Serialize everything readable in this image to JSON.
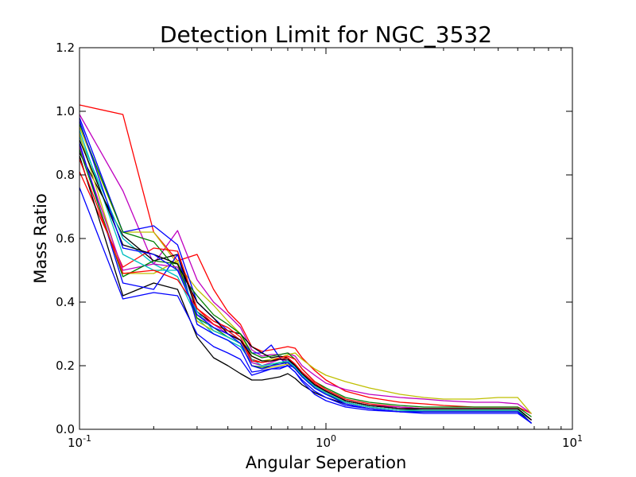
{
  "chart_data": {
    "type": "line",
    "title": "Detection Limit for NGC_3532",
    "xlabel": "Angular Seperation",
    "ylabel": "Mass Ratio",
    "x_scale": "log",
    "xlim": [
      0.1,
      10
    ],
    "ylim": [
      0.0,
      1.2
    ],
    "x_ticks": [
      0.1,
      1,
      10
    ],
    "x_tick_labels": [
      {
        "base": "10",
        "exp": "-1"
      },
      {
        "base": "10",
        "exp": "0"
      },
      {
        "base": "10",
        "exp": "1"
      }
    ],
    "y_ticks": [
      0.0,
      0.2,
      0.4,
      0.6,
      0.8,
      1.0,
      1.2
    ],
    "y_tick_labels": [
      "0.0",
      "0.2",
      "0.4",
      "0.6",
      "0.8",
      "1.0",
      "1.2"
    ],
    "grid": false,
    "legend": "none",
    "x": [
      0.1,
      0.15,
      0.2,
      0.25,
      0.3,
      0.35,
      0.4,
      0.45,
      0.5,
      0.55,
      0.6,
      0.65,
      0.7,
      0.75,
      0.8,
      0.9,
      1.0,
      1.2,
      1.5,
      2.0,
      2.5,
      3.0,
      4.0,
      5.0,
      6.0,
      6.8
    ],
    "series": [
      {
        "color": "#ff0000",
        "values": [
          1.02,
          0.99,
          0.62,
          0.53,
          0.55,
          0.44,
          0.37,
          0.33,
          0.26,
          0.245,
          0.25,
          0.255,
          0.26,
          0.255,
          0.225,
          0.185,
          0.155,
          0.12,
          0.1,
          0.085,
          0.08,
          0.075,
          0.07,
          0.07,
          0.07,
          0.05
        ]
      },
      {
        "color": "#bf00bf",
        "values": [
          0.99,
          0.75,
          0.52,
          0.625,
          0.47,
          0.4,
          0.36,
          0.32,
          0.25,
          0.23,
          0.235,
          0.235,
          0.24,
          0.23,
          0.2,
          0.17,
          0.145,
          0.125,
          0.11,
          0.1,
          0.095,
          0.09,
          0.085,
          0.085,
          0.08,
          0.05
        ]
      },
      {
        "color": "#bfbf00",
        "values": [
          0.95,
          0.62,
          0.62,
          0.52,
          0.44,
          0.39,
          0.34,
          0.3,
          0.23,
          0.215,
          0.22,
          0.225,
          0.235,
          0.24,
          0.22,
          0.19,
          0.17,
          0.15,
          0.13,
          0.11,
          0.1,
          0.095,
          0.095,
          0.1,
          0.1,
          0.05
        ]
      },
      {
        "color": "#0000ff",
        "values": [
          0.98,
          0.62,
          0.64,
          0.58,
          0.4,
          0.35,
          0.31,
          0.28,
          0.24,
          0.24,
          0.265,
          0.225,
          0.2,
          0.195,
          0.17,
          0.14,
          0.12,
          0.09,
          0.075,
          0.065,
          0.06,
          0.06,
          0.06,
          0.06,
          0.06,
          0.03
        ]
      },
      {
        "color": "#000000",
        "values": [
          0.87,
          0.61,
          0.53,
          0.55,
          0.37,
          0.33,
          0.31,
          0.3,
          0.26,
          0.24,
          0.225,
          0.23,
          0.225,
          0.2,
          0.175,
          0.14,
          0.12,
          0.09,
          0.075,
          0.065,
          0.06,
          0.06,
          0.06,
          0.06,
          0.06,
          0.02
        ]
      },
      {
        "color": "#00bfbf",
        "values": [
          0.92,
          0.6,
          0.52,
          0.48,
          0.35,
          0.3,
          0.28,
          0.26,
          0.21,
          0.2,
          0.205,
          0.21,
          0.21,
          0.19,
          0.165,
          0.13,
          0.11,
          0.085,
          0.07,
          0.06,
          0.055,
          0.055,
          0.055,
          0.055,
          0.055,
          0.02
        ]
      },
      {
        "color": "#008000",
        "values": [
          0.96,
          0.62,
          0.59,
          0.5,
          0.42,
          0.36,
          0.33,
          0.3,
          0.24,
          0.225,
          0.23,
          0.235,
          0.24,
          0.22,
          0.19,
          0.15,
          0.13,
          0.1,
          0.085,
          0.075,
          0.07,
          0.07,
          0.07,
          0.07,
          0.07,
          0.04
        ]
      },
      {
        "color": "#ff0000",
        "values": [
          0.81,
          0.51,
          0.57,
          0.56,
          0.38,
          0.34,
          0.32,
          0.29,
          0.22,
          0.21,
          0.215,
          0.225,
          0.23,
          0.22,
          0.19,
          0.15,
          0.125,
          0.095,
          0.08,
          0.07,
          0.065,
          0.065,
          0.065,
          0.065,
          0.065,
          0.03
        ]
      },
      {
        "color": "#000000",
        "values": [
          0.86,
          0.42,
          0.46,
          0.44,
          0.29,
          0.225,
          0.2,
          0.175,
          0.155,
          0.155,
          0.16,
          0.165,
          0.175,
          0.16,
          0.14,
          0.115,
          0.1,
          0.08,
          0.065,
          0.055,
          0.055,
          0.055,
          0.055,
          0.055,
          0.055,
          0.02
        ]
      },
      {
        "color": "#0000ff",
        "values": [
          0.76,
          0.41,
          0.43,
          0.42,
          0.3,
          0.26,
          0.24,
          0.22,
          0.17,
          0.18,
          0.19,
          0.19,
          0.2,
          0.18,
          0.15,
          0.11,
          0.09,
          0.07,
          0.06,
          0.055,
          0.05,
          0.05,
          0.05,
          0.05,
          0.05,
          0.02
        ]
      },
      {
        "color": "#bfbf00",
        "values": [
          0.93,
          0.49,
          0.49,
          0.53,
          0.34,
          0.31,
          0.29,
          0.27,
          0.2,
          0.19,
          0.195,
          0.2,
          0.205,
          0.195,
          0.17,
          0.135,
          0.115,
          0.085,
          0.07,
          0.06,
          0.06,
          0.06,
          0.06,
          0.06,
          0.06,
          0.03
        ]
      },
      {
        "color": "#bf00bf",
        "values": [
          0.89,
          0.5,
          0.52,
          0.51,
          0.36,
          0.33,
          0.3,
          0.28,
          0.21,
          0.2,
          0.21,
          0.22,
          0.215,
          0.2,
          0.175,
          0.14,
          0.12,
          0.09,
          0.075,
          0.07,
          0.065,
          0.065,
          0.065,
          0.065,
          0.065,
          0.03
        ]
      },
      {
        "color": "#0000ff",
        "values": [
          0.9,
          0.46,
          0.44,
          0.55,
          0.33,
          0.3,
          0.28,
          0.25,
          0.18,
          0.185,
          0.19,
          0.195,
          0.2,
          0.18,
          0.155,
          0.12,
          0.1,
          0.075,
          0.065,
          0.055,
          0.055,
          0.055,
          0.055,
          0.055,
          0.055,
          0.02
        ]
      },
      {
        "color": "#008000",
        "values": [
          0.88,
          0.48,
          0.53,
          0.52,
          0.35,
          0.32,
          0.29,
          0.27,
          0.2,
          0.195,
          0.2,
          0.21,
          0.21,
          0.19,
          0.165,
          0.13,
          0.11,
          0.085,
          0.07,
          0.06,
          0.06,
          0.06,
          0.06,
          0.06,
          0.06,
          0.03
        ]
      },
      {
        "color": "#00bfbf",
        "values": [
          0.94,
          0.55,
          0.5,
          0.5,
          0.37,
          0.31,
          0.29,
          0.27,
          0.22,
          0.2,
          0.205,
          0.21,
          0.215,
          0.195,
          0.17,
          0.135,
          0.115,
          0.085,
          0.07,
          0.06,
          0.06,
          0.06,
          0.06,
          0.06,
          0.06,
          0.03
        ]
      },
      {
        "color": "#ff0000",
        "values": [
          0.85,
          0.49,
          0.5,
          0.47,
          0.38,
          0.33,
          0.31,
          0.28,
          0.215,
          0.21,
          0.215,
          0.22,
          0.225,
          0.205,
          0.18,
          0.145,
          0.12,
          0.09,
          0.075,
          0.065,
          0.065,
          0.065,
          0.065,
          0.065,
          0.065,
          0.03
        ]
      },
      {
        "color": "#000000",
        "values": [
          0.91,
          0.58,
          0.55,
          0.52,
          0.4,
          0.35,
          0.3,
          0.28,
          0.23,
          0.215,
          0.215,
          0.22,
          0.22,
          0.2,
          0.175,
          0.14,
          0.12,
          0.09,
          0.075,
          0.065,
          0.065,
          0.065,
          0.065,
          0.065,
          0.065,
          0.03
        ]
      },
      {
        "color": "#0000ff",
        "values": [
          0.97,
          0.57,
          0.55,
          0.5,
          0.36,
          0.32,
          0.3,
          0.27,
          0.2,
          0.19,
          0.2,
          0.205,
          0.21,
          0.19,
          0.165,
          0.13,
          0.11,
          0.08,
          0.065,
          0.055,
          0.055,
          0.055,
          0.055,
          0.055,
          0.055,
          0.02
        ]
      }
    ]
  }
}
